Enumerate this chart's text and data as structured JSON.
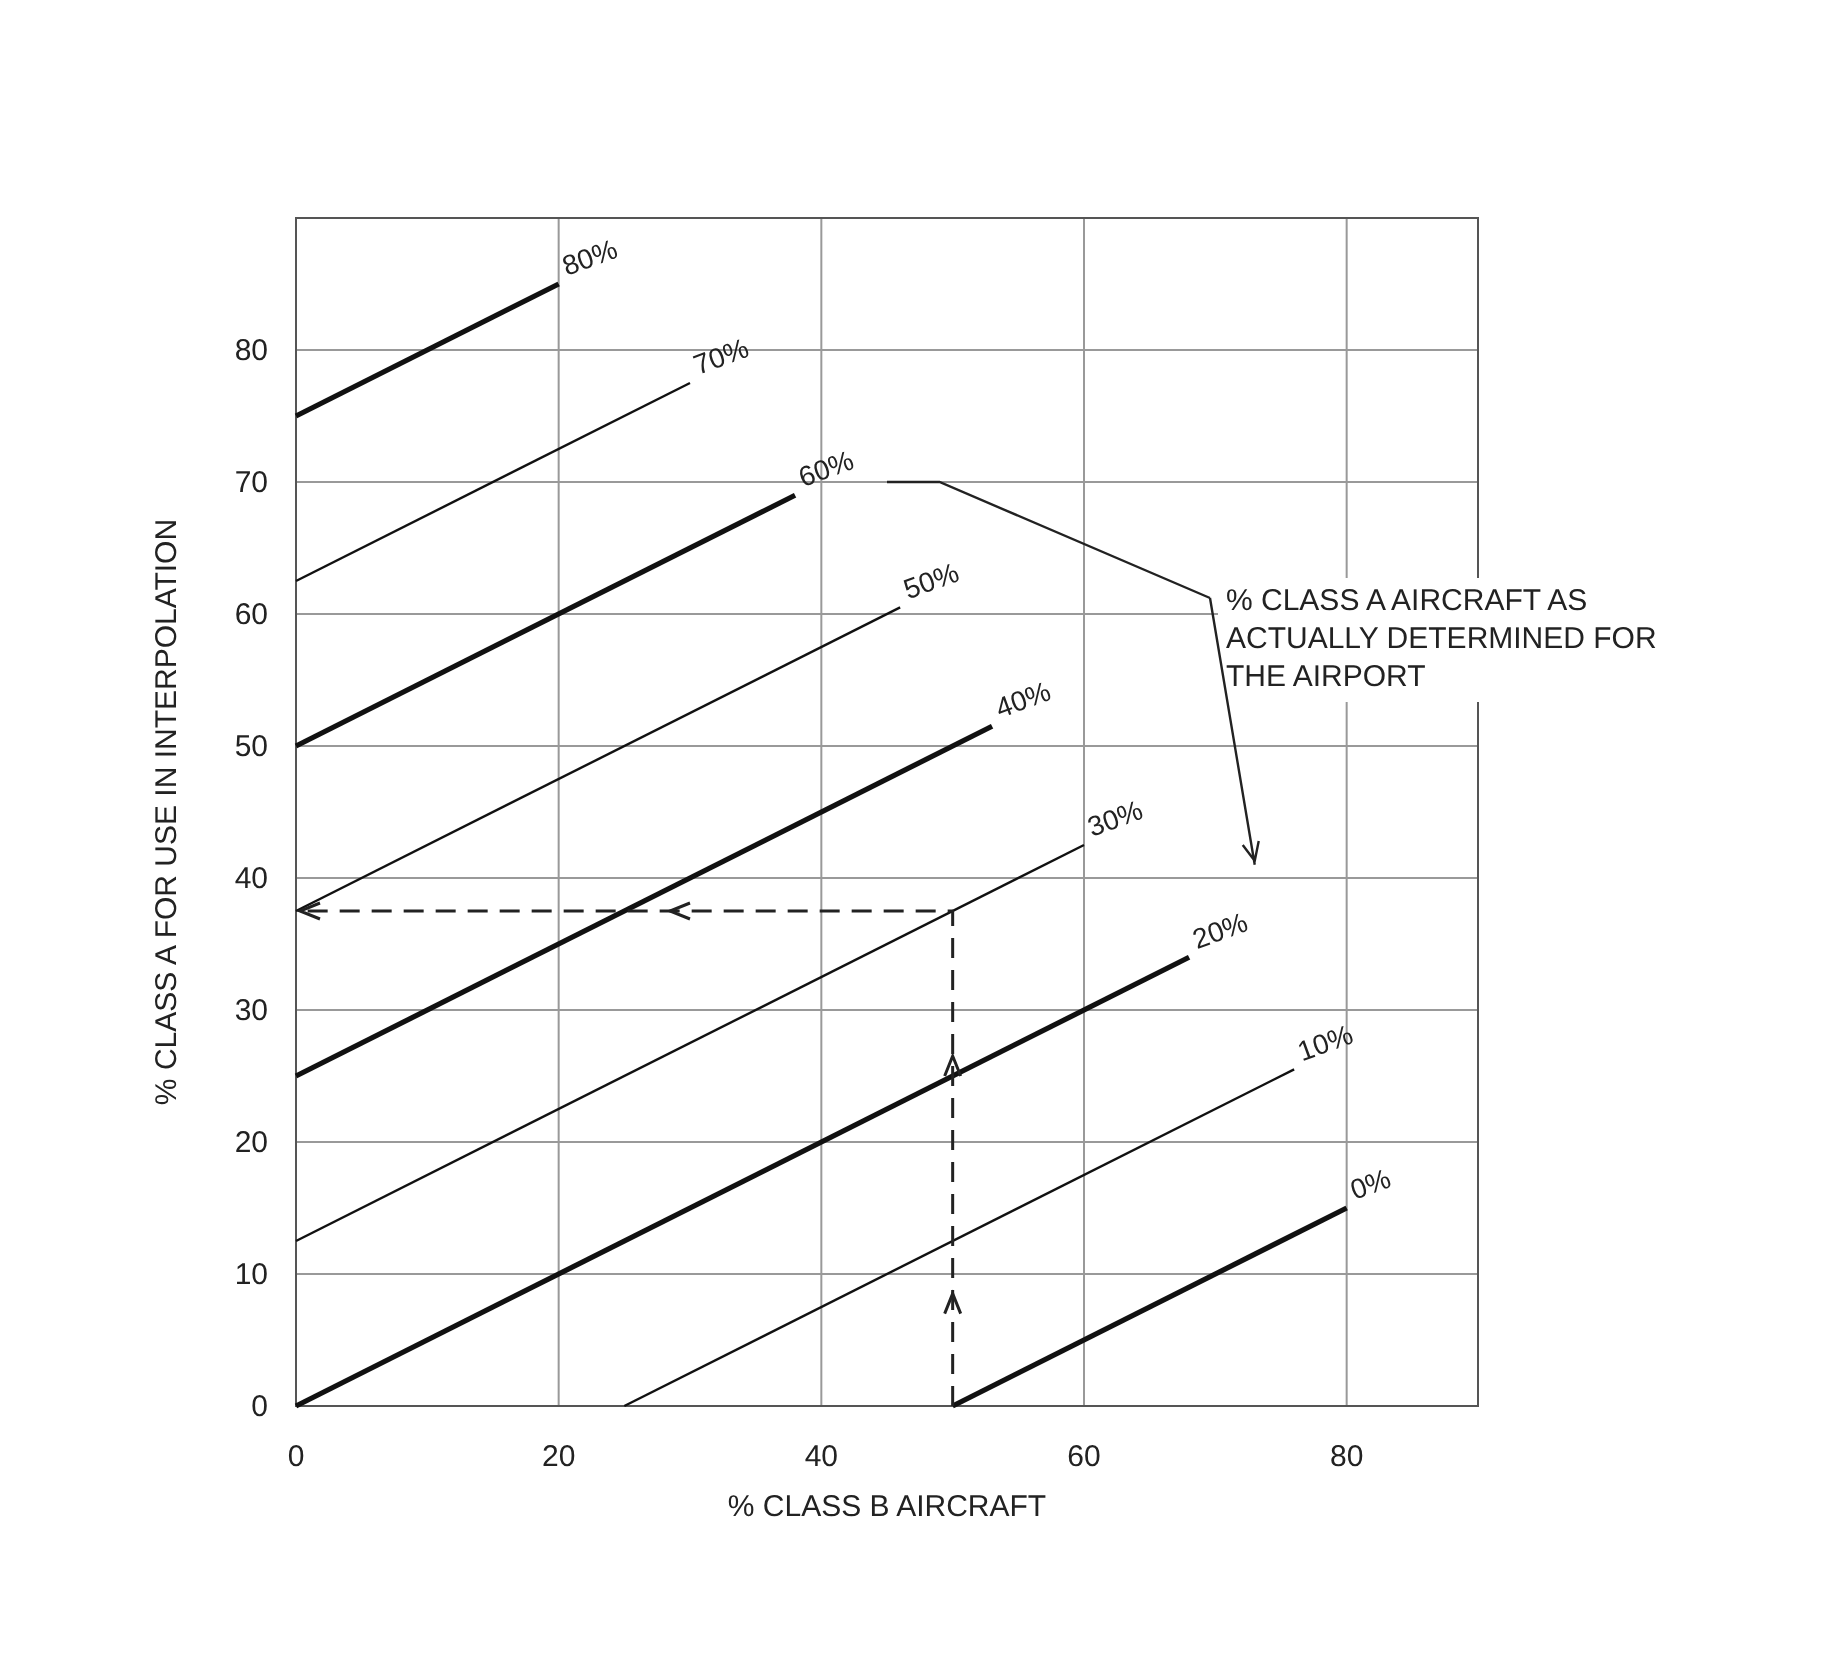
{
  "chart_data": {
    "type": "line",
    "xlabel": "% CLASS B AIRCRAFT",
    "ylabel": "% CLASS A FOR USE IN INTERPOLATION",
    "xlim": [
      0,
      90
    ],
    "ylim": [
      0,
      90
    ],
    "xticks": [
      0,
      20,
      40,
      60,
      80
    ],
    "yticks": [
      0,
      10,
      20,
      30,
      40,
      50,
      60,
      70,
      80
    ],
    "grid": true,
    "marker": "none",
    "line_style": "solid",
    "annotations": [
      "% CLASS A AIRCRAFT AS ACTUALLY DETERMINED FOR THE AIRPORT"
    ],
    "series": [
      {
        "name": "80%",
        "color": "#111111",
        "x": [
          0,
          20
        ],
        "values": [
          75,
          85
        ]
      },
      {
        "name": "70%",
        "color": "#111111",
        "x": [
          0,
          30
        ],
        "values": [
          62.5,
          77.5
        ]
      },
      {
        "name": "60%",
        "color": "#111111",
        "x": [
          0,
          38
        ],
        "values": [
          50,
          69
        ]
      },
      {
        "name": "50%",
        "color": "#111111",
        "x": [
          0,
          46
        ],
        "values": [
          37.5,
          60.5
        ]
      },
      {
        "name": "40%",
        "color": "#111111",
        "x": [
          0,
          53
        ],
        "values": [
          25,
          51.5
        ]
      },
      {
        "name": "30%",
        "color": "#111111",
        "x": [
          0,
          60
        ],
        "values": [
          12.5,
          42.5
        ]
      },
      {
        "name": "20%",
        "color": "#111111",
        "x": [
          0,
          68
        ],
        "values": [
          0,
          34
        ]
      },
      {
        "name": "10%",
        "color": "#111111",
        "x": [
          25,
          76
        ],
        "values": [
          0,
          25.5
        ]
      },
      {
        "name": "0%",
        "color": "#111111",
        "x": [
          50,
          80
        ],
        "values": [
          0,
          15
        ]
      },
      {
        "color": "#222222",
        "line_style": "dashed",
        "x": [
          50,
          50,
          0
        ],
        "values": [
          0,
          37.5,
          37.5
        ]
      }
    ]
  }
}
